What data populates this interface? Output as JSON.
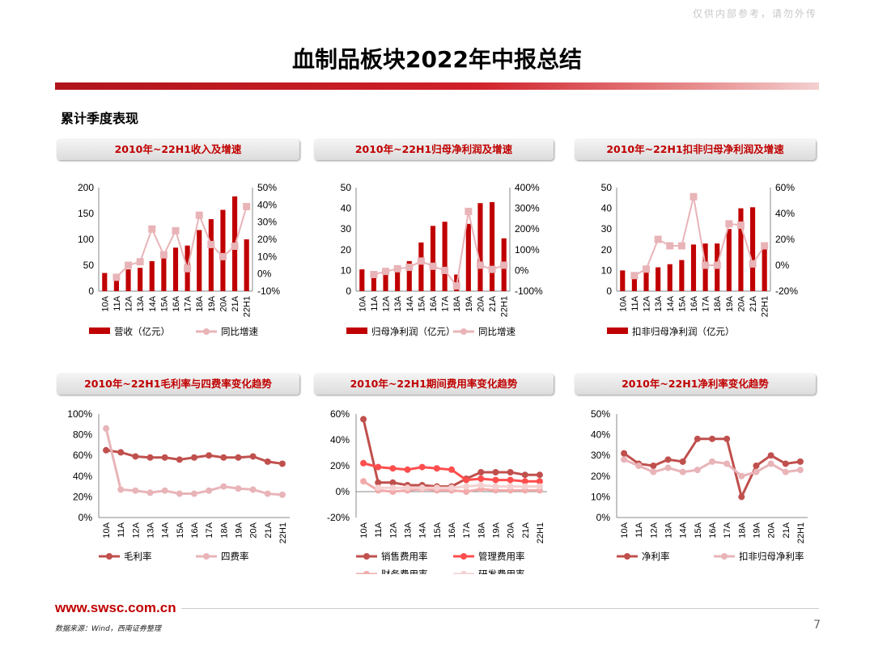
{
  "watermark": "仅供内部参考，请勿外传",
  "title": "血制品板块2022年中报总结",
  "section": "累计季度表现",
  "footer": {
    "url": "www.swsc.com.cn",
    "source": "数据来源：Wind，西南证券整理",
    "page": "7"
  },
  "colors": {
    "dark_red": "#c00000",
    "light_pink": "#e8b4b8",
    "series_red": "#c0504d",
    "series_bright": "#ff4d4d",
    "series_pink": "#f2aaaa",
    "series_pale": "#f5d0d0"
  },
  "panels": [
    {
      "header": "2010年~22H1收入及增速"
    },
    {
      "header": "2010年~22H1归母净利润及增速"
    },
    {
      "header": "2010年~22H1扣非归母净利润及增速"
    },
    {
      "header": "2010年~22H1毛利率与四费率变化趋势"
    },
    {
      "header": "2010年~22H1期间费用率变化趋势"
    },
    {
      "header": "2010年~22H1净利率变化趋势"
    }
  ],
  "chart_data": [
    {
      "type": "bar+line",
      "categories": [
        "10A",
        "11A",
        "12A",
        "13A",
        "14A",
        "15A",
        "16A",
        "17A",
        "18A",
        "19A",
        "20A",
        "21A",
        "22H1"
      ],
      "left_ticks": [
        "0",
        "50",
        "100",
        "150",
        "200"
      ],
      "ylim": [
        0,
        200
      ],
      "right_ticks": [
        "-10%",
        "0%",
        "10%",
        "20%",
        "30%",
        "40%",
        "50%"
      ],
      "y2lim": [
        -10,
        50
      ],
      "series": [
        {
          "name": "营收（亿元）",
          "kind": "bar",
          "axis": "left",
          "values": [
            35,
            22,
            42,
            45,
            58,
            65,
            84,
            88,
            118,
            139,
            157,
            183,
            100
          ]
        },
        {
          "name": "同比增速",
          "kind": "line",
          "axis": "right",
          "values": [
            null,
            -2,
            5,
            7,
            26,
            11,
            25,
            3,
            34,
            17,
            10,
            16,
            39
          ]
        }
      ]
    },
    {
      "type": "bar+line",
      "categories": [
        "10A",
        "11A",
        "12A",
        "13A",
        "14A",
        "15A",
        "16A",
        "17A",
        "18A",
        "19A",
        "20A",
        "21A",
        "22H1"
      ],
      "left_ticks": [
        "0",
        "10",
        "20",
        "30",
        "40",
        "50"
      ],
      "ylim": [
        0,
        50
      ],
      "right_ticks": [
        "-100%",
        "0%",
        "100%",
        "200%",
        "300%",
        "400%"
      ],
      "y2lim": [
        -100,
        400
      ],
      "series": [
        {
          "name": "归母净利润（亿元）",
          "kind": "bar",
          "axis": "left",
          "values": [
            10.5,
            7.5,
            9,
            11,
            14.5,
            23.5,
            31.5,
            33.5,
            8,
            32.5,
            42.5,
            43,
            25.5
          ]
        },
        {
          "name": "同比增速",
          "kind": "line",
          "axis": "right",
          "values": [
            null,
            -20,
            -5,
            8,
            15,
            45,
            20,
            0,
            -75,
            285,
            25,
            5,
            25
          ]
        }
      ]
    },
    {
      "type": "bar+line",
      "categories": [
        "10A",
        "11A",
        "12A",
        "13A",
        "14A",
        "15A",
        "16A",
        "17A",
        "18A",
        "19A",
        "20A",
        "21A",
        "22H1"
      ],
      "left_ticks": [
        "0",
        "10",
        "20",
        "30",
        "40",
        "50"
      ],
      "ylim": [
        0,
        50
      ],
      "right_ticks": [
        "-20%",
        "0%",
        "20%",
        "40%",
        "60%"
      ],
      "y2lim": [
        -20,
        60
      ],
      "series": [
        {
          "name": "扣非归母净利润（亿元）",
          "kind": "bar",
          "axis": "left",
          "values": [
            10,
            6,
            9,
            11.5,
            13,
            15,
            22.5,
            23,
            23,
            30,
            40,
            40.5,
            20.5
          ]
        },
        {
          "name": "同比增速",
          "kind": "line",
          "axis": "right",
          "values": [
            null,
            -8,
            -3,
            20,
            15,
            15,
            53,
            0,
            0,
            32,
            31,
            1,
            15
          ]
        }
      ]
    },
    {
      "type": "line",
      "categories": [
        "10A",
        "11A",
        "12A",
        "13A",
        "14A",
        "15A",
        "16A",
        "17A",
        "18A",
        "19A",
        "20A",
        "21A",
        "22H1"
      ],
      "ticks": [
        "0%",
        "20%",
        "40%",
        "60%",
        "80%",
        "100%"
      ],
      "ylim": [
        0,
        100
      ],
      "series": [
        {
          "name": "毛利率",
          "values": [
            65,
            63,
            59,
            58,
            58,
            56,
            58,
            60,
            58,
            58,
            59,
            54,
            52
          ]
        },
        {
          "name": "四费率",
          "values": [
            86,
            27,
            26,
            24,
            26,
            23,
            23,
            26,
            30,
            28,
            27,
            23,
            22
          ]
        }
      ]
    },
    {
      "type": "line",
      "categories": [
        "10A",
        "11A",
        "12A",
        "13A",
        "14A",
        "15A",
        "16A",
        "17A",
        "18A",
        "19A",
        "20A",
        "21A",
        "22H1"
      ],
      "ticks": [
        "-20%",
        "0%",
        "20%",
        "40%",
        "60%"
      ],
      "ylim": [
        -20,
        60
      ],
      "series": [
        {
          "name": "销售费用率",
          "values": [
            56,
            7,
            7,
            5,
            5,
            4,
            4,
            10,
            15,
            15,
            15,
            13,
            13
          ]
        },
        {
          "name": "管理费用率",
          "values": [
            22,
            19,
            18,
            17,
            19,
            18,
            17,
            9,
            10,
            9,
            9,
            8,
            8
          ]
        },
        {
          "name": "财务费用率",
          "values": [
            8,
            1,
            0,
            1,
            2,
            1,
            1,
            0,
            2,
            1,
            1,
            1,
            1
          ]
        },
        {
          "name": "研发费用率",
          "values": [
            null,
            3,
            3,
            3,
            3,
            3,
            3,
            4,
            5,
            4,
            4,
            4,
            4
          ]
        }
      ]
    },
    {
      "type": "line",
      "categories": [
        "10A",
        "11A",
        "12A",
        "13A",
        "14A",
        "15A",
        "16A",
        "17A",
        "18A",
        "19A",
        "20A",
        "21A",
        "22H1"
      ],
      "ticks": [
        "0%",
        "10%",
        "20%",
        "30%",
        "40%",
        "50%"
      ],
      "ylim": [
        0,
        50
      ],
      "series": [
        {
          "name": "净利率",
          "values": [
            31,
            26,
            25,
            28,
            27,
            38,
            38,
            38,
            10,
            25,
            30,
            26,
            27
          ]
        },
        {
          "name": "扣非归母净利率",
          "values": [
            28,
            25,
            22,
            24,
            22,
            23,
            27,
            26,
            20,
            22,
            26,
            22,
            23
          ]
        }
      ]
    }
  ]
}
